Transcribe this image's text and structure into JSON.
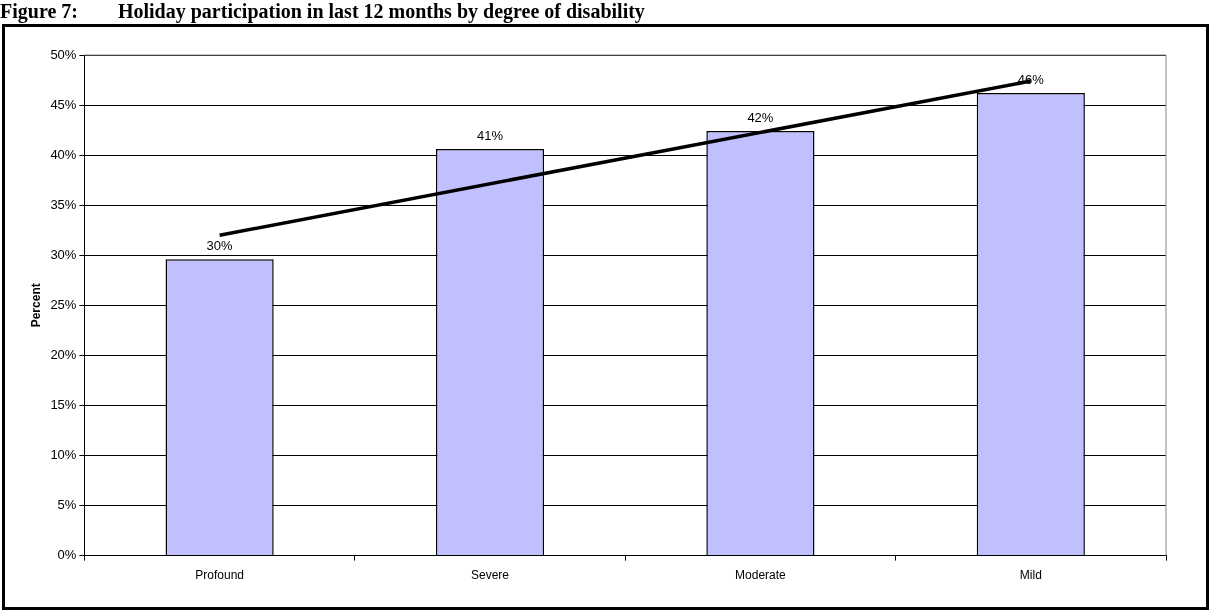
{
  "chart_data": {
    "type": "bar",
    "title": "Figure 7:        Holiday participation in last 12 months by degree of disability",
    "ylabel": "Percent",
    "categories": [
      "Profound",
      "Severe",
      "Moderate",
      "Mild"
    ],
    "series": [
      {
        "color": "#c0c0ff",
        "values": [
          29.6,
          40.6,
          42.4,
          46.2
        ],
        "value_labels": [
          "30%",
          "41%",
          "42%",
          "46%"
        ]
      },
      {
        "type": "line",
        "color": "#000000",
        "x": [
          "Profound",
          "Mild"
        ],
        "values": [
          32.0,
          47.4
        ]
      }
    ],
    "ylim": [
      0,
      50
    ],
    "yticks": [
      {
        "value": 0,
        "label": "0%"
      },
      {
        "value": 5,
        "label": "5%"
      },
      {
        "value": 10,
        "label": "10%"
      },
      {
        "value": 15,
        "label": "15%"
      },
      {
        "value": 20,
        "label": "20%"
      },
      {
        "value": 25,
        "label": "25%"
      },
      {
        "value": 30,
        "label": "30%"
      },
      {
        "value": 35,
        "label": "35%"
      },
      {
        "value": 40,
        "label": "40%"
      },
      {
        "value": 45,
        "label": "45%"
      },
      {
        "value": 50,
        "label": "50%"
      }
    ],
    "grid": "y",
    "legend": false,
    "marker": "none",
    "line_style": "solid"
  }
}
